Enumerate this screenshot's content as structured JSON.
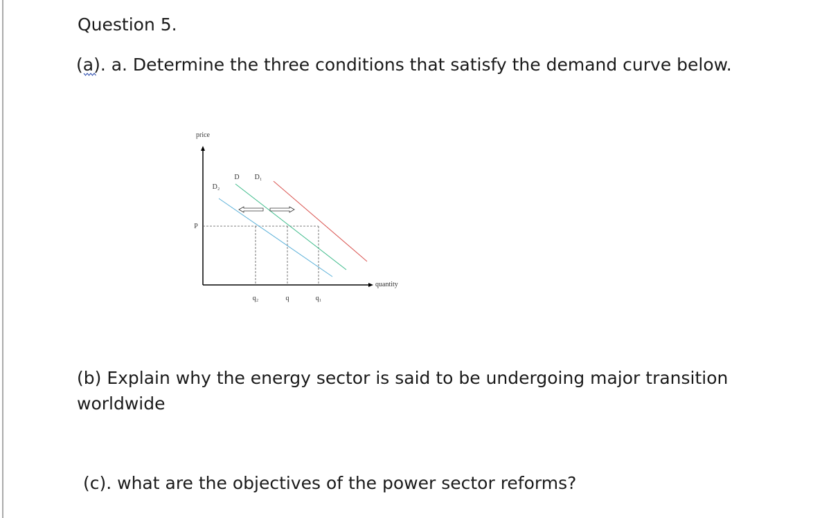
{
  "question": {
    "title": "Question 5.",
    "part_a": "(a). a. Determine the three conditions that satisfy the demand curve below.",
    "diagram": {
      "y_axis_label": "price",
      "x_axis_label": "quantity",
      "price_label": "P",
      "curves": [
        "D",
        "D₁",
        "D₂"
      ],
      "quantities": [
        "q₂",
        "q",
        "q₁"
      ]
    },
    "part_b": [
      "(b) Explain why the energy sector is said to be undergoing major transition",
      "worldwide"
    ],
    "part_c": "(c). what are the objectives of the power sector reforms?"
  }
}
